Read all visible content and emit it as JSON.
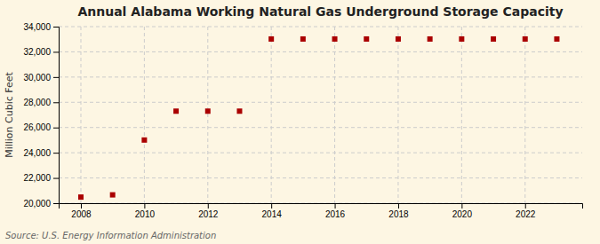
{
  "chart_data": {
    "type": "scatter",
    "title": "Annual Alabama Working Natural Gas Underground Storage Capacity",
    "ylabel": "Million Cubic Feet",
    "annotations": [
      "Source: U.S. Energy Information Administration"
    ],
    "x": [
      2008,
      2009,
      2010,
      2011,
      2012,
      2013,
      2014,
      2015,
      2016,
      2017,
      2018,
      2019,
      2020,
      2021,
      2022,
      2023
    ],
    "values": [
      20483,
      20661,
      25008,
      27297,
      27297,
      27297,
      33019,
      33019,
      33019,
      33019,
      33019,
      33019,
      33019,
      33019,
      33019,
      33019
    ],
    "color": "#aa0000",
    "marker": "square",
    "xlim": [
      2007.3,
      2023.8
    ],
    "xticks": [
      2008,
      2010,
      2012,
      2014,
      2016,
      2018,
      2020,
      2022
    ],
    "ylim": [
      20000,
      34000
    ],
    "yticks": [
      {
        "value": 20000,
        "label": "20,000"
      },
      {
        "value": 22000,
        "label": "22,000"
      },
      {
        "value": 24000,
        "label": "24,000"
      },
      {
        "value": 26000,
        "label": "26,000"
      },
      {
        "value": 28000,
        "label": "28,000"
      },
      {
        "value": 30000,
        "label": "30,000"
      },
      {
        "value": 32000,
        "label": "32,000"
      },
      {
        "value": 34000,
        "label": "34,000"
      }
    ],
    "grid": true
  }
}
